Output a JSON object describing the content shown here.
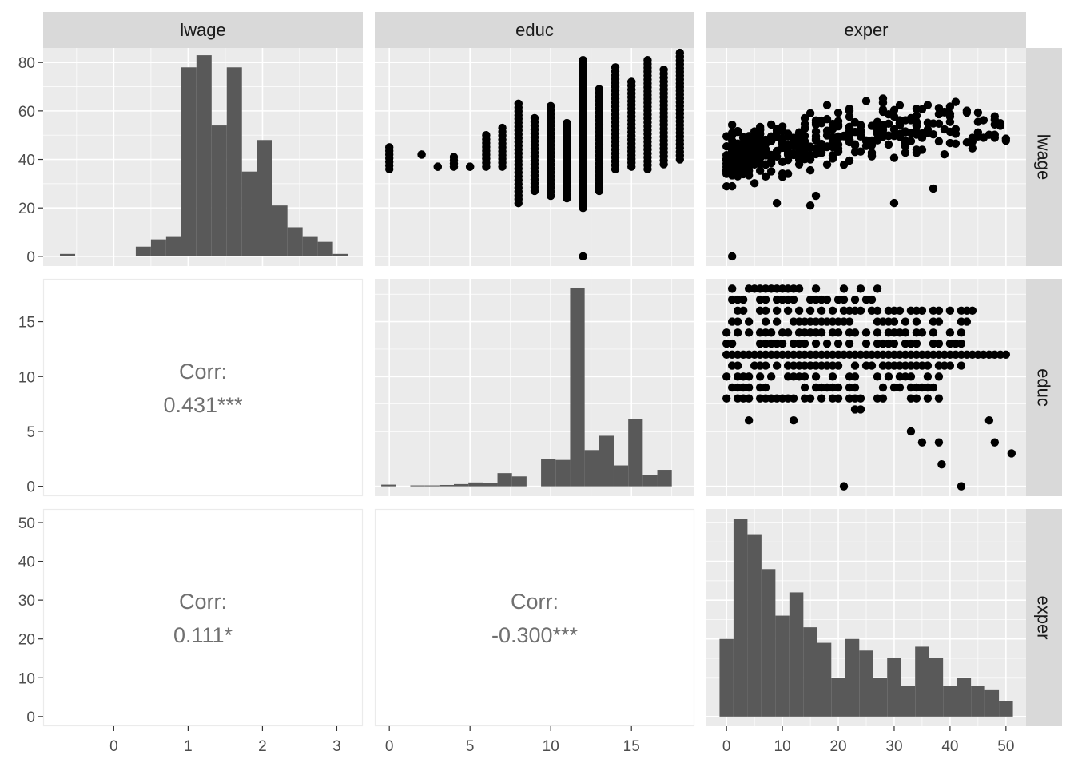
{
  "colors": {
    "panel_bg": "#ebebeb",
    "grid_major": "#ffffff",
    "strip_bg": "#d9d9d9",
    "bar_fill": "#595959",
    "point": "#000000",
    "corr_text": "#707070",
    "tick_text": "#4d4d4d",
    "strip_text": "#1a1a1a",
    "corr_panel_border": "#ebebeb"
  },
  "strips": {
    "top": [
      "lwage",
      "educ",
      "exper"
    ],
    "right": [
      "lwage",
      "educ",
      "exper"
    ]
  },
  "axes": {
    "lwage": {
      "range": [
        -0.95,
        3.35
      ],
      "ticks": [
        0,
        1,
        2,
        3
      ],
      "tick_labels": [
        "0",
        "1",
        "2",
        "3"
      ]
    },
    "educ": {
      "range": [
        -0.9,
        18.9
      ],
      "ticks": [
        0,
        5,
        10,
        15
      ],
      "tick_labels": [
        "0",
        "5",
        "10",
        "15"
      ]
    },
    "exper": {
      "range": [
        -3.6,
        53.6
      ],
      "ticks": [
        0,
        10,
        20,
        30,
        40,
        50
      ],
      "tick_labels": [
        "0",
        "10",
        "20",
        "30",
        "40",
        "50"
      ]
    }
  },
  "row_axes": {
    "row1": {
      "range": [
        -4,
        86
      ],
      "ticks": [
        0,
        20,
        40,
        60,
        80
      ],
      "tick_labels": [
        "0",
        "20",
        "40",
        "60",
        "80"
      ]
    },
    "row2": {
      "range": [
        -0.9,
        18.9
      ],
      "ticks": [
        0,
        5,
        10,
        15
      ],
      "tick_labels": [
        "0",
        "5",
        "10",
        "15"
      ]
    },
    "row3": {
      "range": [
        -2.5,
        53.5
      ],
      "ticks": [
        0,
        10,
        20,
        30,
        40,
        50
      ],
      "tick_labels": [
        "0",
        "10",
        "20",
        "30",
        "40",
        "50"
      ]
    }
  },
  "correlations": {
    "lwage_educ": {
      "label": "Corr:",
      "value": "0.431***"
    },
    "lwage_exper": {
      "label": "Corr:",
      "value": "0.111*"
    },
    "educ_exper": {
      "label": "Corr:",
      "value": "-0.300***"
    }
  },
  "chart_data": {
    "type": "scatter",
    "variables": [
      "lwage",
      "educ",
      "exper"
    ],
    "lwage_histogram": {
      "type": "bar",
      "bin_edges": [
        -0.724,
        -0.52,
        -0.316,
        -0.112,
        0.092,
        0.296,
        0.5,
        0.704,
        0.908,
        1.112,
        1.316,
        1.52,
        1.724,
        1.928,
        2.132,
        2.336,
        2.54,
        2.744,
        2.948,
        3.152,
        3.356
      ],
      "counts": [
        1,
        0,
        0,
        0,
        0,
        4,
        7,
        8,
        78,
        83,
        54,
        78,
        35,
        48,
        21,
        12,
        8,
        6,
        1,
        0
      ]
    },
    "educ_histogram": {
      "type": "bar",
      "bin_edges": [
        -0.5,
        0.4,
        1.3,
        2.2,
        3.1,
        4.0,
        4.9,
        5.8,
        6.7,
        7.6,
        8.5,
        9.4,
        10.3,
        11.2,
        12.1,
        13.0,
        13.9,
        14.8,
        15.7,
        16.6,
        17.5,
        18.4
      ],
      "counts": [
        0.15,
        0,
        0.08,
        0.08,
        0.12,
        0.2,
        0.35,
        0.3,
        1.2,
        0.9,
        0,
        2.5,
        2.4,
        18.1,
        3.3,
        4.6,
        1.9,
        6.1,
        1.0,
        1.5,
        0
      ]
    },
    "exper_histogram": {
      "type": "bar",
      "bin_edges": [
        -1.25,
        1.25,
        3.75,
        6.25,
        8.75,
        11.25,
        13.75,
        16.25,
        18.75,
        21.25,
        23.75,
        26.25,
        28.75,
        31.25,
        33.75,
        36.25,
        38.75,
        41.25,
        43.75,
        46.25,
        48.75,
        51.25
      ],
      "counts": [
        20,
        51,
        47,
        38,
        26,
        32,
        23,
        19,
        10,
        20,
        17,
        10,
        15,
        8,
        18,
        15,
        8,
        10,
        8,
        7,
        4
      ]
    },
    "lwage_vs_educ": {
      "type": "scatter",
      "x_var": "educ",
      "y_var": "lwage",
      "columns": [
        {
          "x": 0,
          "y_min": 36,
          "y_max": 45
        },
        {
          "x": 2,
          "y_min": 42,
          "y_max": 42
        },
        {
          "x": 3,
          "y_min": 37,
          "y_max": 37
        },
        {
          "x": 4,
          "y_min": 37,
          "y_max": 41
        },
        {
          "x": 5,
          "y_min": 37,
          "y_max": 37
        },
        {
          "x": 6,
          "y_min": 37,
          "y_max": 50
        },
        {
          "x": 7,
          "y_min": 37,
          "y_max": 53
        },
        {
          "x": 8,
          "y_min": 22,
          "y_max": 63
        },
        {
          "x": 9,
          "y_min": 27,
          "y_max": 57
        },
        {
          "x": 10,
          "y_min": 25,
          "y_max": 62
        },
        {
          "x": 11,
          "y_min": 24,
          "y_max": 55
        },
        {
          "x": 12,
          "y_min": 20,
          "y_max": 81
        },
        {
          "x": 13,
          "y_min": 27,
          "y_max": 69
        },
        {
          "x": 14,
          "y_min": 36,
          "y_max": 78
        },
        {
          "x": 15,
          "y_min": 37,
          "y_max": 72
        },
        {
          "x": 16,
          "y_min": 36,
          "y_max": 81
        },
        {
          "x": 17,
          "y_min": 38,
          "y_max": 77
        },
        {
          "x": 18,
          "y_min": 40,
          "y_max": 84
        }
      ],
      "outliers": [
        [
          12,
          0
        ]
      ]
    },
    "lwage_vs_exper": {
      "type": "scatter",
      "x_var": "exper",
      "y_var": "lwage",
      "y_range_typical": [
        25,
        80
      ],
      "outliers": [
        [
          1,
          0
        ],
        [
          9,
          22
        ],
        [
          15,
          21
        ],
        [
          16,
          25
        ],
        [
          30,
          22
        ],
        [
          37,
          28
        ]
      ]
    },
    "educ_vs_exper": {
      "type": "scatter",
      "x_var": "exper",
      "y_var": "educ",
      "main_band": [
        8,
        18
      ],
      "outliers": [
        [
          4,
          6
        ],
        [
          12,
          6
        ],
        [
          21,
          0
        ],
        [
          33,
          5
        ],
        [
          35,
          4
        ],
        [
          38,
          4
        ],
        [
          38.5,
          2
        ],
        [
          42,
          0
        ],
        [
          47,
          6
        ],
        [
          48,
          4
        ],
        [
          51,
          3
        ],
        [
          23,
          7
        ],
        [
          24,
          7
        ]
      ]
    }
  }
}
